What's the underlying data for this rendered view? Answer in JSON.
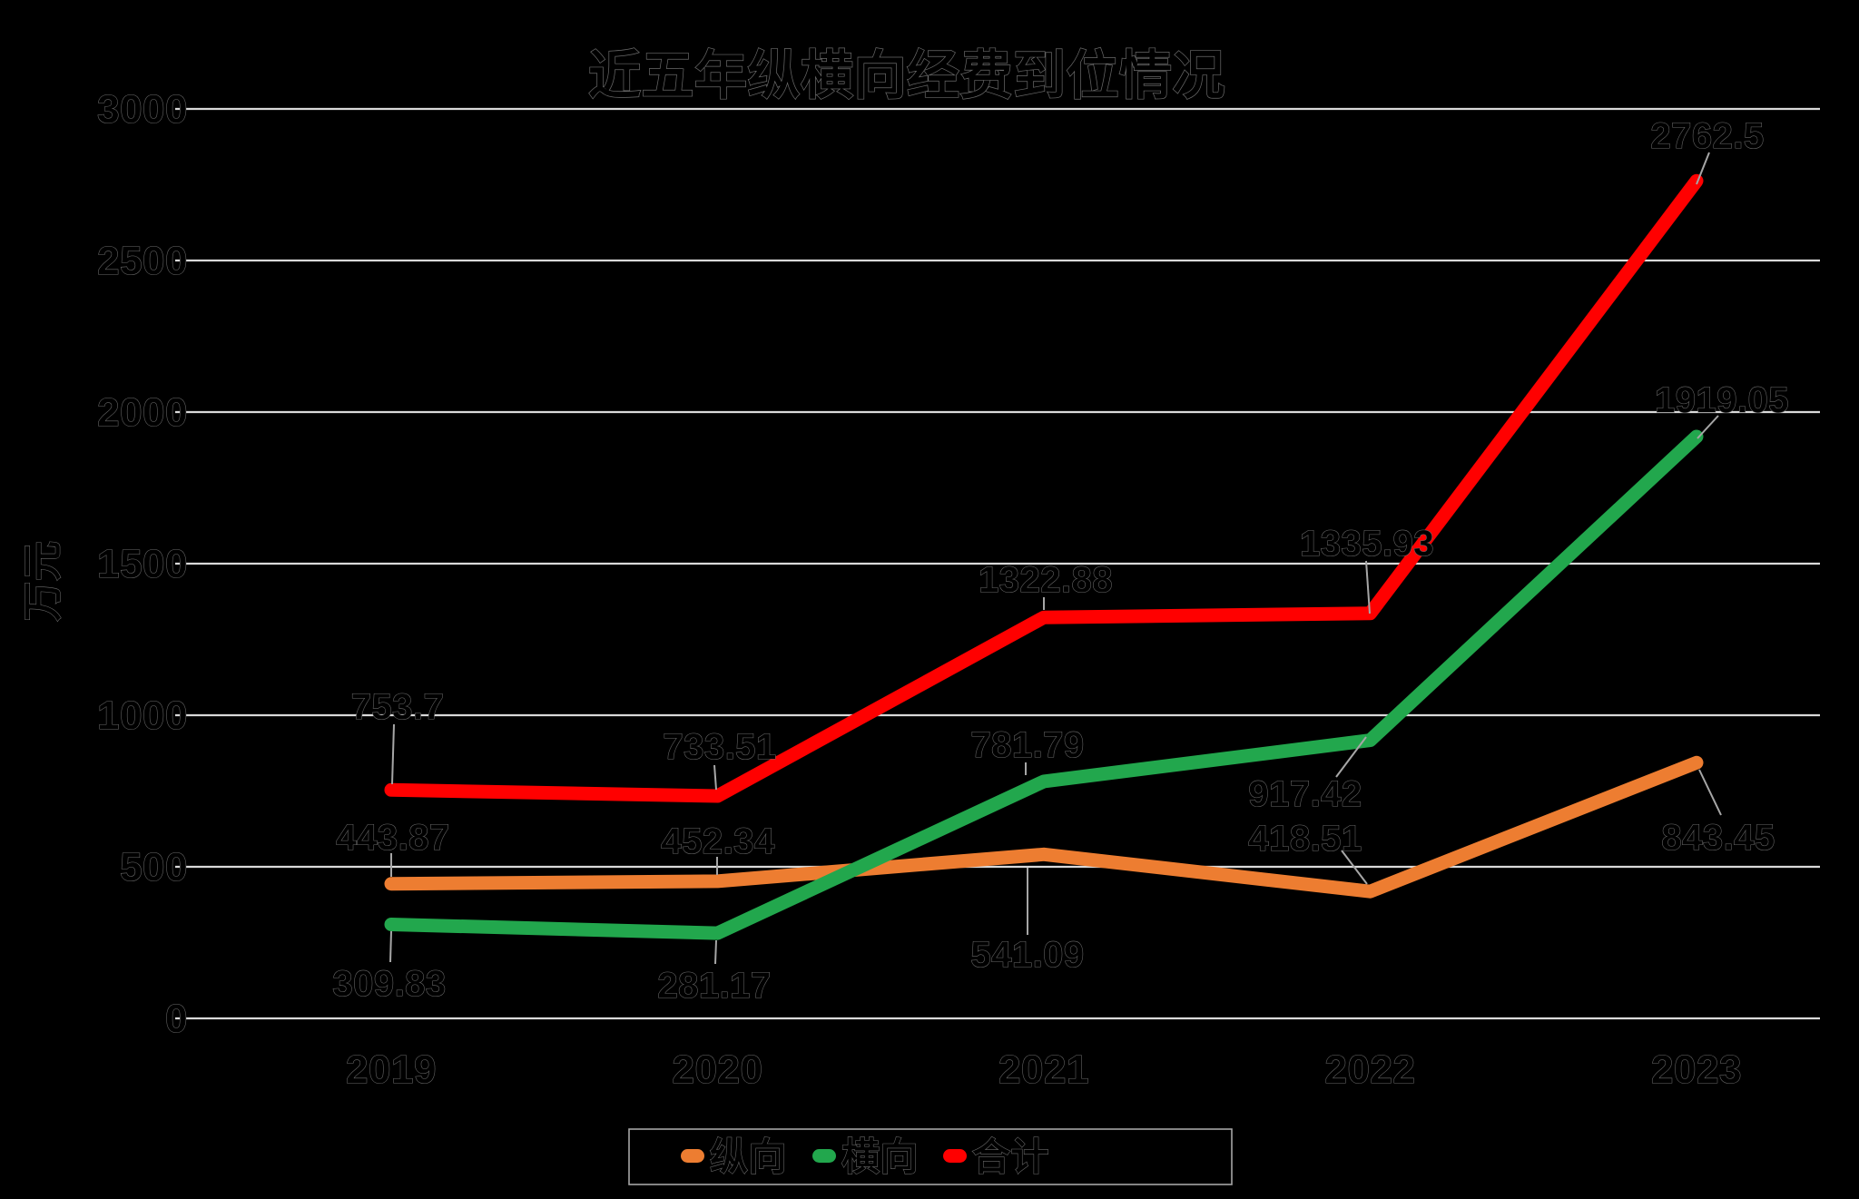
{
  "title": "近五年纵横向经费到位情况",
  "y_axis": {
    "title": "万元",
    "tick_labels": [
      "0",
      "500",
      "1000",
      "1500",
      "2000",
      "2500",
      "3000"
    ]
  },
  "x_axis": {
    "tick_labels": [
      "2019",
      "2020",
      "2021",
      "2022",
      "2023"
    ]
  },
  "legend": {
    "items": [
      {
        "label": "纵向",
        "color": "#ED7D31"
      },
      {
        "label": "横向",
        "color": "#22A74D"
      },
      {
        "label": "合计",
        "color": "#FF0000"
      }
    ]
  },
  "chart_data": {
    "type": "line",
    "title": "近五年纵横向经费到位情况",
    "xlabel": "",
    "ylabel": "万元",
    "categories": [
      "2019",
      "2020",
      "2021",
      "2022",
      "2023"
    ],
    "series": [
      {
        "name": "纵向",
        "color": "#ED7D31",
        "values": [
          443.87,
          452.34,
          541.09,
          418.51,
          843.45
        ],
        "point_labels": [
          "443.87",
          "452.34",
          "541.09",
          "418.51",
          "843.45"
        ]
      },
      {
        "name": "横向",
        "color": "#22A74D",
        "values": [
          309.83,
          281.17,
          781.79,
          917.42,
          1919.05
        ],
        "point_labels": [
          "309.83",
          "281.17",
          "781.79",
          "917.42",
          "1919.05"
        ]
      },
      {
        "name": "合计",
        "color": "#FF0000",
        "values": [
          753.7,
          733.51,
          1322.88,
          1335.93,
          2762.5
        ],
        "point_labels": [
          "753.7",
          "733.51",
          "1322.88",
          "1335.93",
          "2762.5"
        ]
      }
    ],
    "ylim": [
      0,
      3000
    ],
    "y_tick_step": 500,
    "grid": true,
    "legend_position": "bottom",
    "background": "#000000",
    "gridline_color": "#D9D9D9",
    "text_color": "#000000"
  }
}
